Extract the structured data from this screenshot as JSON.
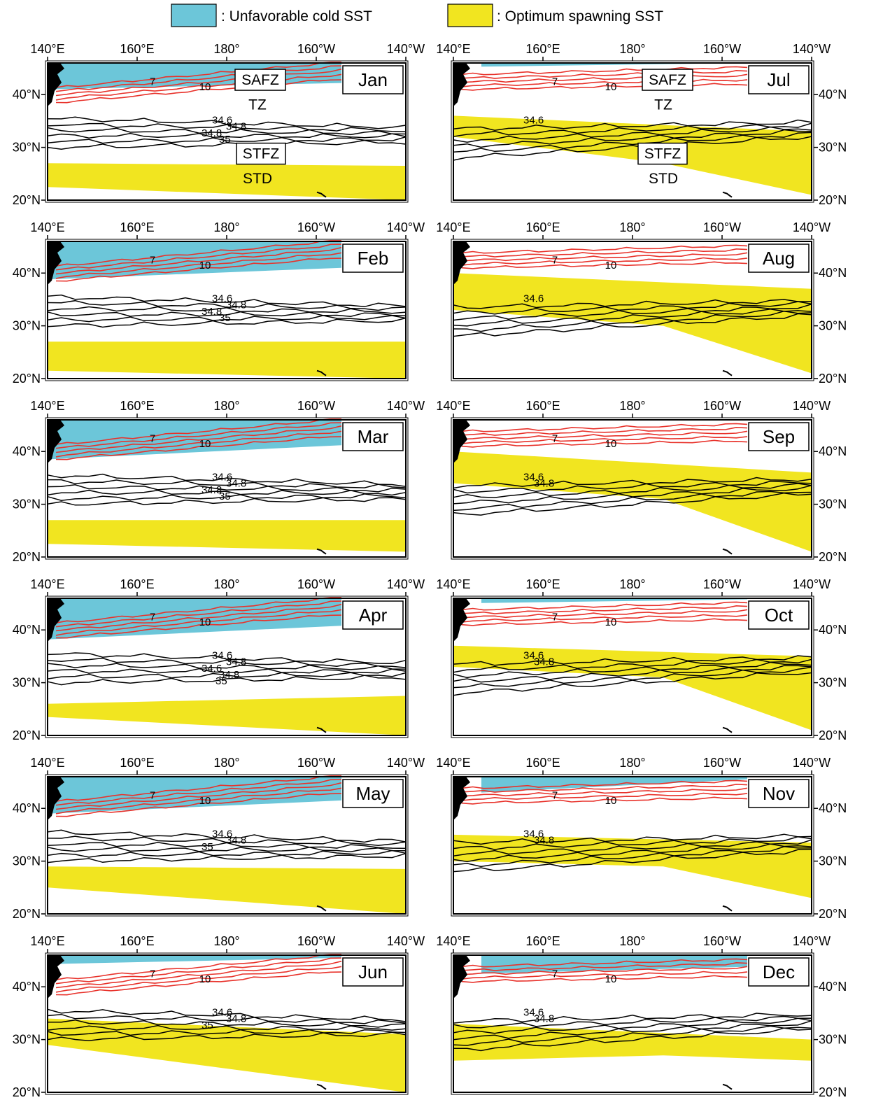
{
  "legend": [
    {
      "label": ": Unfavorable cold SST",
      "color": "#6cc6d9"
    },
    {
      "label": ": Optimum spawning SST",
      "color": "#f1e520"
    }
  ],
  "axes": {
    "lon_ticks": [
      "140°E",
      "160°E",
      "180°",
      "160°W",
      "140°W"
    ],
    "lat_ticks": [
      "40°N",
      "30°N",
      "20°N"
    ]
  },
  "colors": {
    "cold": "#6cc6d9",
    "spawn": "#f1e520",
    "sst_contour": "#e8322b",
    "salinity_contour": "#000000",
    "land": "#000000"
  },
  "contour_labels": {
    "sst": [
      "7",
      "10"
    ],
    "salinity": [
      "34.6",
      "34.8",
      "35"
    ]
  },
  "zone_labels": {
    "safz": "SAFZ",
    "tz": "TZ",
    "stfz": "STFZ",
    "std": "STD"
  },
  "panels": [
    {
      "month": "Jan",
      "zones": true,
      "sal_labels": [
        "34.6",
        "34.8",
        "34.8",
        "35"
      ]
    },
    {
      "month": "Jul",
      "zones": true,
      "sal_labels": [
        "34.6"
      ]
    },
    {
      "month": "Feb",
      "zones": false,
      "sal_labels": [
        "34.6",
        "34.8",
        "34.8",
        "35"
      ]
    },
    {
      "month": "Aug",
      "zones": false,
      "sal_labels": [
        "34.6"
      ]
    },
    {
      "month": "Mar",
      "zones": false,
      "sal_labels": [
        "34.6",
        "34.8",
        "34.8",
        "35"
      ]
    },
    {
      "month": "Sep",
      "zones": false,
      "sal_labels": [
        "34.6",
        "34.8"
      ]
    },
    {
      "month": "Apr",
      "zones": false,
      "sal_labels": [
        "34.6",
        "34.8",
        "34.6",
        "34.8",
        "35"
      ]
    },
    {
      "month": "Oct",
      "zones": false,
      "sal_labels": [
        "34.6",
        "34.8"
      ]
    },
    {
      "month": "May",
      "zones": false,
      "sal_labels": [
        "34.6",
        "34.8",
        "35"
      ]
    },
    {
      "month": "Nov",
      "zones": false,
      "sal_labels": [
        "34.6",
        "34.8"
      ]
    },
    {
      "month": "Jun",
      "zones": false,
      "sal_labels": [
        "34.6",
        "34.8",
        "35"
      ]
    },
    {
      "month": "Dec",
      "zones": false,
      "sal_labels": [
        "34.6",
        "34.8"
      ]
    }
  ]
}
